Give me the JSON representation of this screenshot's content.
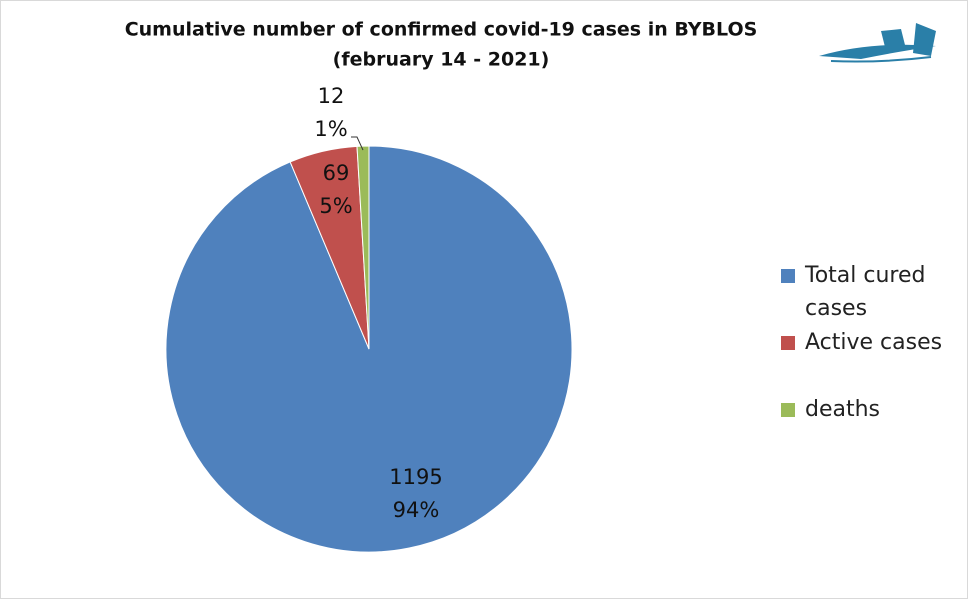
{
  "chart_data": {
    "type": "pie",
    "title": "Cumulative number of confirmed covid-19 cases in BYBLOS",
    "subtitle": "(february  14 - 2021)",
    "series": [
      {
        "name": "Total cured cases",
        "color": "#4f81bd",
        "value": 1195,
        "percent_label": "94%"
      },
      {
        "name": "Active cases",
        "color": "#c0504d",
        "value": 69,
        "percent_label": "5%"
      },
      {
        "name": "deaths",
        "color": "#9bbb59",
        "value": 12,
        "percent_label": "1%"
      }
    ],
    "legend": "right"
  }
}
